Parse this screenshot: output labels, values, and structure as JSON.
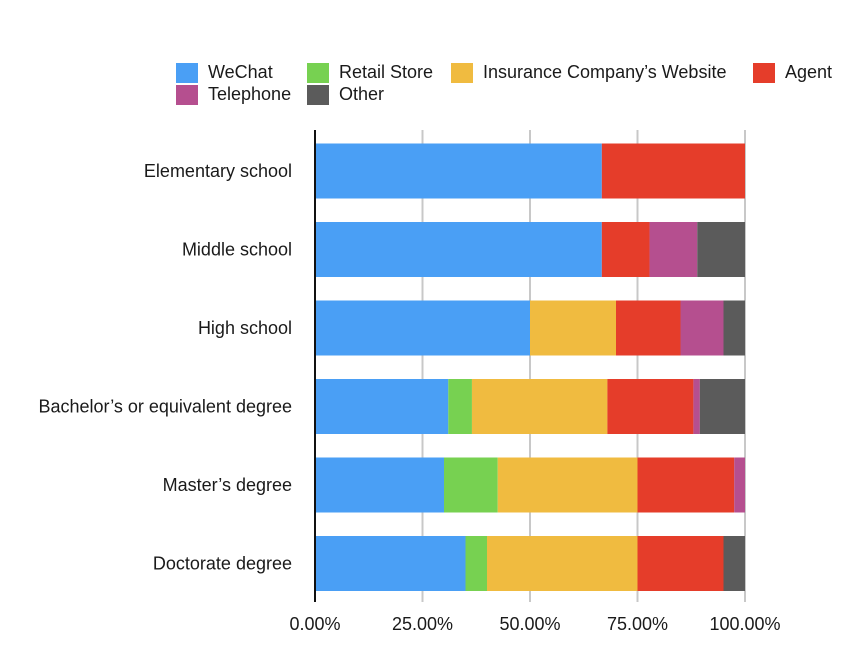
{
  "chart_data": {
    "type": "bar",
    "orientation": "horizontal",
    "stacked": "percent",
    "title": "",
    "xlabel": "",
    "ylabel": "",
    "xlim": [
      0,
      100
    ],
    "grid": true,
    "legend_position": "top-right",
    "x_ticks": [
      "0.00%",
      "25.00%",
      "50.00%",
      "75.00%",
      "100.00%"
    ],
    "categories": [
      "Elementary school",
      "Middle school",
      "High school",
      "Bachelor’s or equivalent degree",
      "Master’s degree",
      "Doctorate degree"
    ],
    "series": [
      {
        "name": "WeChat",
        "color": "#4a9ff5",
        "values": [
          66.7,
          66.7,
          50.0,
          31.0,
          30.0,
          35.0
        ]
      },
      {
        "name": "Retail Store",
        "color": "#77d151",
        "values": [
          0,
          0,
          0,
          5.5,
          12.5,
          5.0
        ]
      },
      {
        "name": "Insurance Company’s Website",
        "color": "#f0bb40",
        "values": [
          0,
          0,
          20.0,
          31.5,
          32.5,
          35.0
        ]
      },
      {
        "name": "Agent",
        "color": "#e53d2a",
        "values": [
          33.3,
          11.1,
          15.0,
          20.0,
          22.5,
          20.0
        ]
      },
      {
        "name": "Telephone",
        "color": "#b54f8f",
        "values": [
          0,
          11.1,
          10.0,
          1.5,
          2.5,
          0
        ]
      },
      {
        "name": "Other",
        "color": "#5b5b5b",
        "values": [
          0,
          11.1,
          5.0,
          10.5,
          0,
          5.0
        ]
      }
    ]
  }
}
